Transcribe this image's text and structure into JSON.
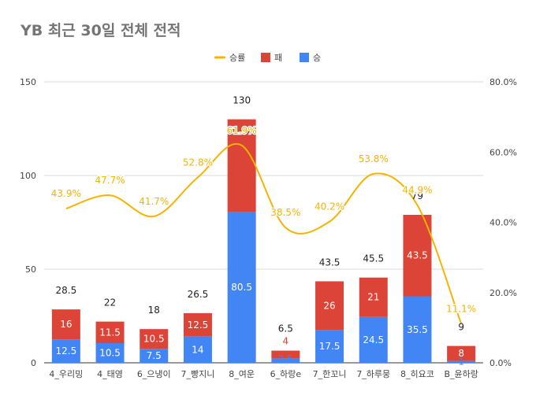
{
  "chart_data": {
    "type": "bar",
    "title": "YB 최근 30일 전체 전적",
    "categories": [
      "4_우리밍",
      "4_태영",
      "6_으냉이",
      "7_빵지니",
      "8_여운",
      "6_하랑e",
      "7_한꼬니",
      "7_하루뭉",
      "8_히요코",
      "B_윤하랑"
    ],
    "series": [
      {
        "name": "승",
        "color": "#4285f4",
        "values": [
          12.5,
          10.5,
          7.5,
          14,
          80.5,
          2.5,
          17.5,
          24.5,
          35.5,
          1
        ],
        "labels": [
          "12.5",
          "10.5",
          "7.5",
          "14",
          "80.5",
          "2.5",
          "17.5",
          "24.5",
          "35.5",
          "1"
        ]
      },
      {
        "name": "패",
        "color": "#db4437",
        "values": [
          16,
          11.5,
          10.5,
          12.5,
          49.5,
          4,
          26,
          21,
          43.5,
          8
        ],
        "labels": [
          "16",
          "11.5",
          "10.5",
          "12.5",
          "",
          "4",
          "26",
          "21",
          "43.5",
          "8"
        ]
      },
      {
        "name": "승률",
        "color": "#f4b400",
        "axis": "right",
        "values": [
          43.9,
          47.7,
          41.7,
          52.8,
          61.9,
          38.5,
          40.2,
          53.8,
          44.9,
          11.1
        ],
        "labels": [
          "43.9%",
          "47.7%",
          "41.7%",
          "52.8%",
          "61.9%",
          "38.5%",
          "40.2%",
          "53.8%",
          "44.9%",
          "11.1%"
        ]
      }
    ],
    "totals": [
      "28.5",
      "22",
      "18",
      "26.5",
      "130",
      "6.5",
      "43.5",
      "45.5",
      "79",
      "9"
    ],
    "left_axis": {
      "min": 0,
      "max": 150,
      "ticks": [
        "0",
        "50",
        "100",
        "150"
      ]
    },
    "right_axis": {
      "min": 0,
      "max": 80,
      "ticks": [
        "0.0%",
        "20.0%",
        "40.0%",
        "60.0%",
        "80.0%"
      ]
    },
    "legend": {
      "position": "top",
      "items": [
        "승률",
        "패",
        "승"
      ]
    },
    "grid": true
  }
}
